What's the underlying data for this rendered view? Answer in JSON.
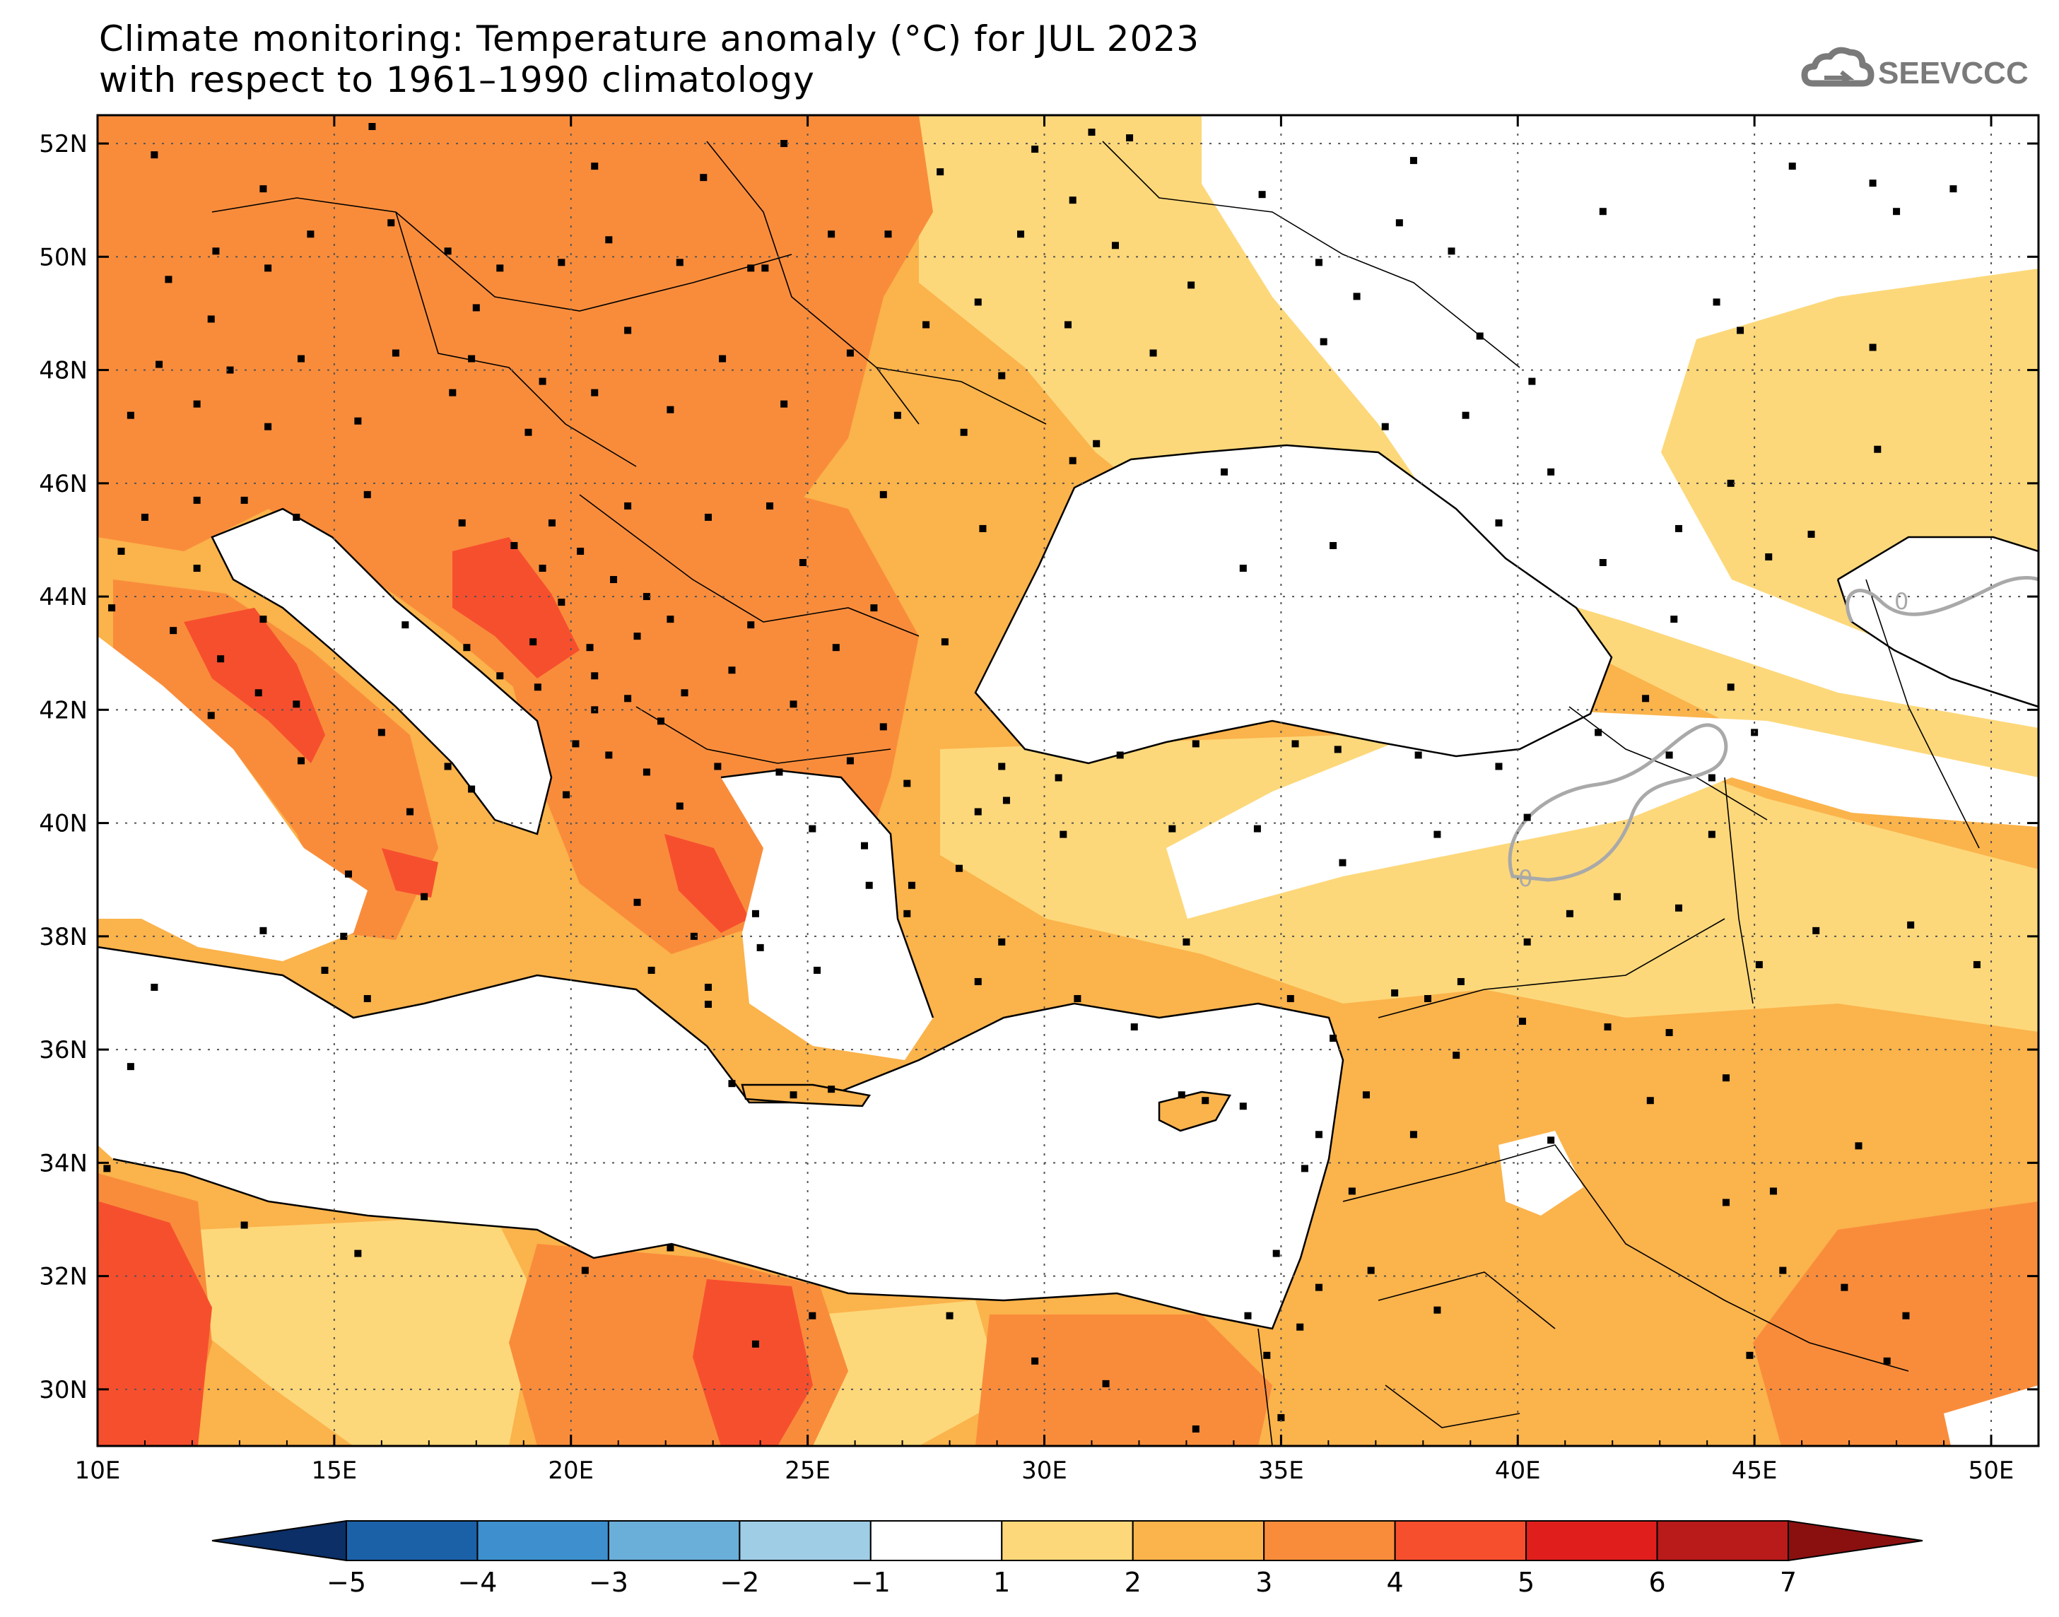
{
  "title": {
    "line1": "Climate monitoring: Temperature anomaly (°C) for JUL 2023",
    "line2": "with respect to 1961–1990 climatology"
  },
  "logo": {
    "text": "SEEVCCC",
    "icon": "cloud-icon"
  },
  "map": {
    "lon_range": [
      10,
      51
    ],
    "lat_range": [
      29,
      52.5
    ],
    "lon_ticks": [
      "10E",
      "15E",
      "20E",
      "25E",
      "30E",
      "35E",
      "40E",
      "45E",
      "50E"
    ],
    "lat_ticks": [
      "30N",
      "32N",
      "34N",
      "36N",
      "38N",
      "40N",
      "42N",
      "44N",
      "46N",
      "48N",
      "50N",
      "52N"
    ],
    "grid": "dotted",
    "contour_label": "0",
    "water_color": "#ffffff"
  },
  "colorbar": {
    "labels": [
      "−5",
      "−4",
      "−3",
      "−2",
      "−1",
      "1",
      "2",
      "3",
      "4",
      "5",
      "6",
      "7"
    ],
    "colors": [
      "#0b2f66",
      "#1b61a8",
      "#3d8fcd",
      "#6aafd9",
      "#a0cde6",
      "#ffffff",
      "#fdd87a",
      "#fbb34b",
      "#f98c3b",
      "#f64f2e",
      "#e01f1c",
      "#b81b1a",
      "#8a1010"
    ],
    "extend": "both"
  }
}
